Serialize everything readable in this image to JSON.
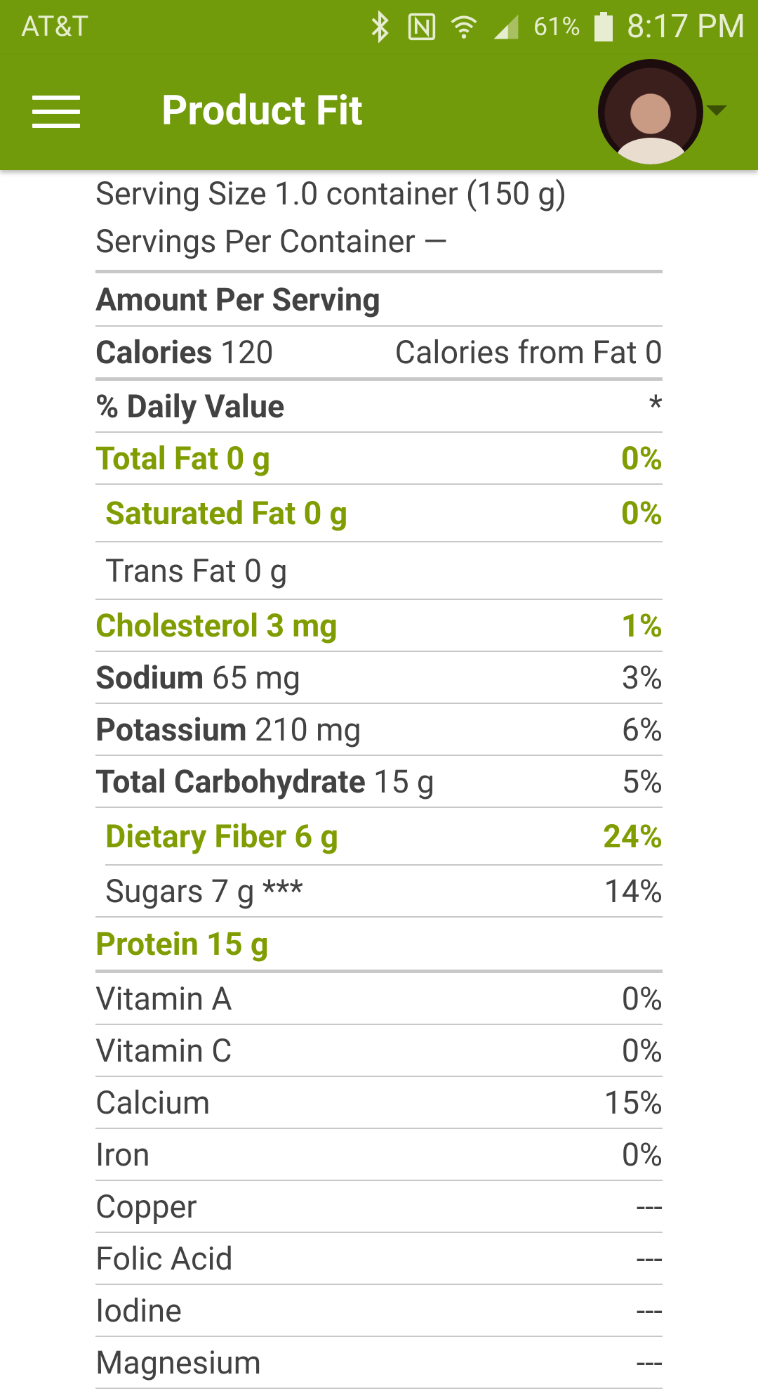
{
  "status_bar": {
    "carrier": "AT&T",
    "battery_percent": "61%",
    "time": "8:17 PM",
    "icons": [
      "bluetooth-icon",
      "nfc-icon",
      "wifi-icon",
      "signal-icon",
      "battery-icon"
    ]
  },
  "app_bar": {
    "title": "Product Fit",
    "menu_icon": "hamburger-menu-icon",
    "avatar": "user-avatar",
    "dropdown_icon": "caret-down-icon"
  },
  "colors": {
    "primary": "#729b0b",
    "accent_text": "#7f9d00",
    "text": "#424242",
    "divider": "#c8c8c8"
  },
  "label": {
    "serving_size": "Serving Size 1.0 container (150 g)",
    "servings_per_container": "Servings Per Container —",
    "amount_per_serving": "Amount Per Serving",
    "calories_label": "Calories",
    "calories_value": "120",
    "calories_from_fat": "Calories from Fat 0",
    "daily_value_header": "% Daily Value",
    "daily_value_mark": "*",
    "nutrients": [
      {
        "name": "Total Fat 0 g",
        "value": "0%"
      },
      {
        "name": "Saturated Fat 0 g",
        "value": "0%"
      },
      {
        "name": "Trans Fat 0 g",
        "value": ""
      },
      {
        "name": "Cholesterol 3 mg",
        "value": "1%"
      },
      {
        "name": "Sodium",
        "amount": "65 mg",
        "value": "3%"
      },
      {
        "name": "Potassium",
        "amount": "210 mg",
        "value": "6%"
      },
      {
        "name": "Total Carbohydrate",
        "amount": "15 g",
        "value": "5%"
      },
      {
        "name": "Dietary Fiber 6 g",
        "value": "24%"
      },
      {
        "name": "Sugars 7 g ***",
        "value": "14%"
      },
      {
        "name": "Protein 15 g",
        "value": ""
      }
    ],
    "vitamins": [
      {
        "name": "Vitamin A",
        "value": "0%"
      },
      {
        "name": "Vitamin C",
        "value": "0%"
      },
      {
        "name": "Calcium",
        "value": "15%"
      },
      {
        "name": "Iron",
        "value": "0%"
      },
      {
        "name": "Copper",
        "value": "---"
      },
      {
        "name": "Folic Acid",
        "value": "---"
      },
      {
        "name": "Iodine",
        "value": "---"
      },
      {
        "name": "Magnesium",
        "value": "---"
      }
    ]
  }
}
